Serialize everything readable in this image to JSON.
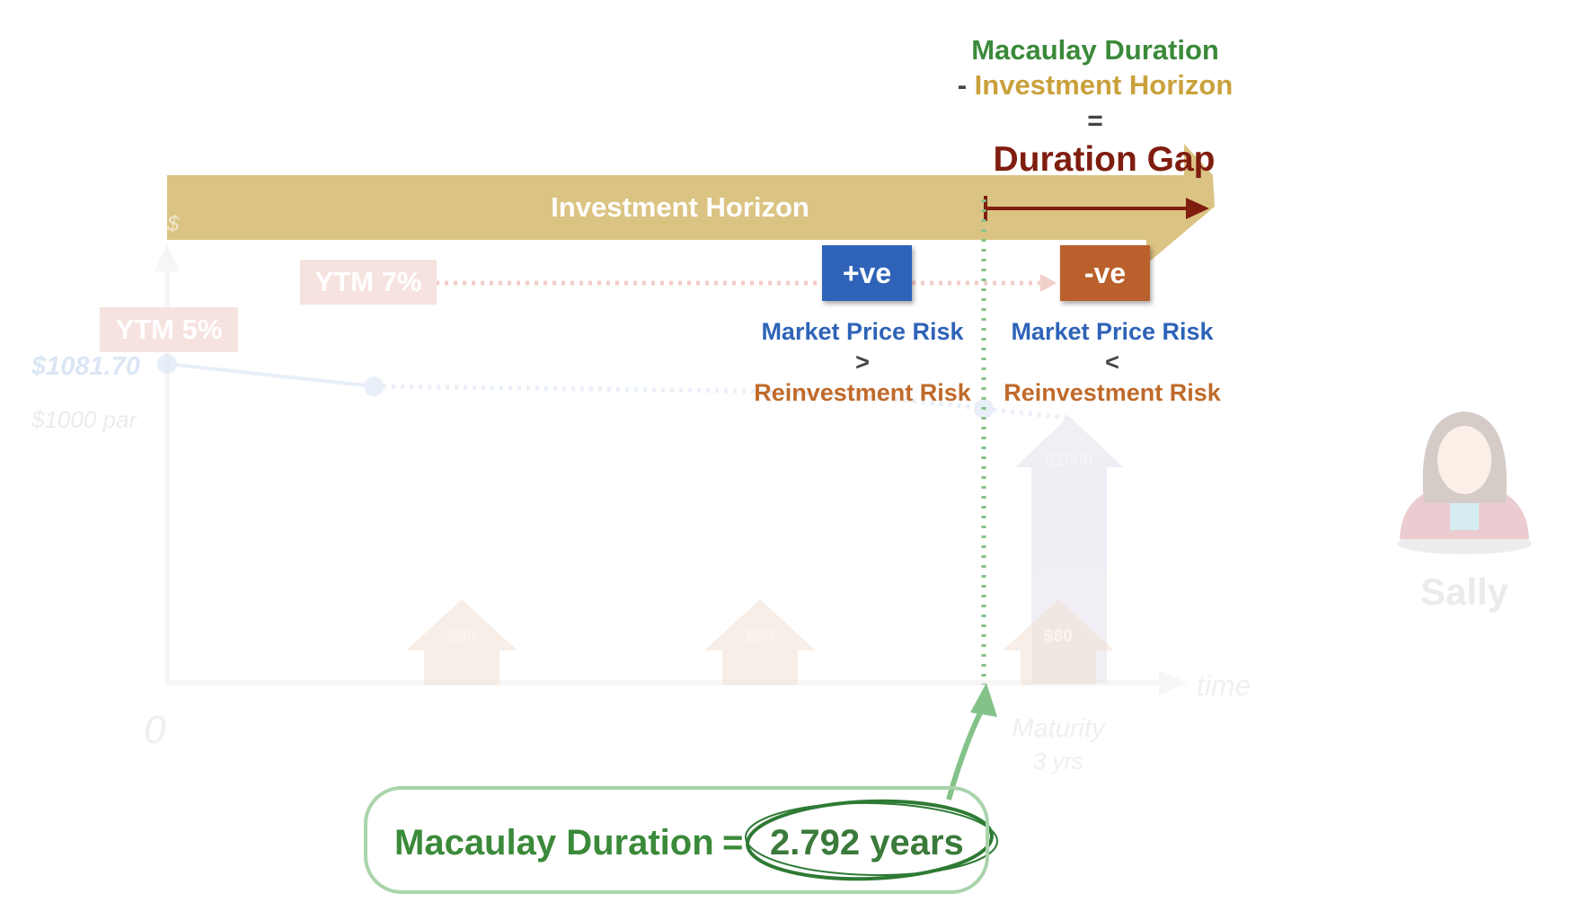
{
  "formula": {
    "line1": "Macaulay Duration",
    "line2_prefix": "-",
    "line2": "Investment Horizon",
    "line3": "=",
    "line4": "Duration Gap"
  },
  "horizon_banner": {
    "label": "Investment Horizon"
  },
  "ytm": {
    "ytm7": "YTM 7%",
    "ytm5": "YTM 5%"
  },
  "price": {
    "value": "$1081.70",
    "par": "$1000 par"
  },
  "positive_gap": {
    "badge": "+ve",
    "line1": "Market Price Risk",
    "comparator": ">",
    "line2": "Reinvestment Risk"
  },
  "negative_gap": {
    "badge": "-ve",
    "line1": "Market Price Risk",
    "comparator": "<",
    "line2": "Reinvestment Risk"
  },
  "cash_flows": {
    "coupon": "$80",
    "principal": "$1000"
  },
  "axis": {
    "origin": "0",
    "x_label": "time",
    "maturity": "Maturity",
    "maturity_years": "3 yrs",
    "y_label": "$"
  },
  "investor": {
    "name": "Sally"
  },
  "result": {
    "label": "Macaulay Duration",
    "equals": "=",
    "value": "2.792 years"
  },
  "colors": {
    "green": "#3a8a3a",
    "gold": "#c9a13b",
    "dark_red": "#7f1d0f",
    "banner": "#dbc483",
    "positive": "#2e63b8",
    "negative": "#b9602c"
  }
}
